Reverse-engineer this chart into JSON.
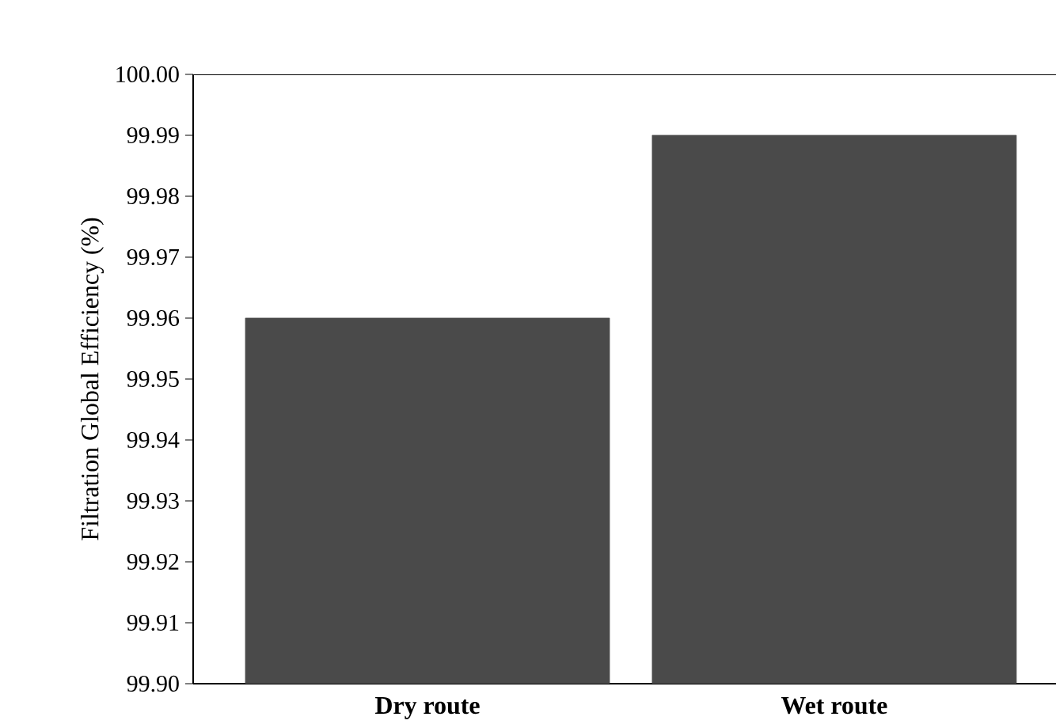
{
  "chart_data": {
    "type": "bar",
    "ylabel": "Filtration Global Efficiency (%)",
    "categories": [
      "Dry route",
      "Wet route"
    ],
    "values": [
      99.96,
      99.99
    ],
    "color": "#4a4a4a",
    "ylim": [
      99.9,
      100.0
    ],
    "yticks": [
      {
        "value": 99.9,
        "label": "99.90"
      },
      99.91,
      99.92,
      99.93,
      99.94,
      99.95,
      99.96,
      99.97,
      99.98,
      99.99,
      {
        "value": 100.0,
        "label": "100.00"
      }
    ],
    "grid": false
  }
}
